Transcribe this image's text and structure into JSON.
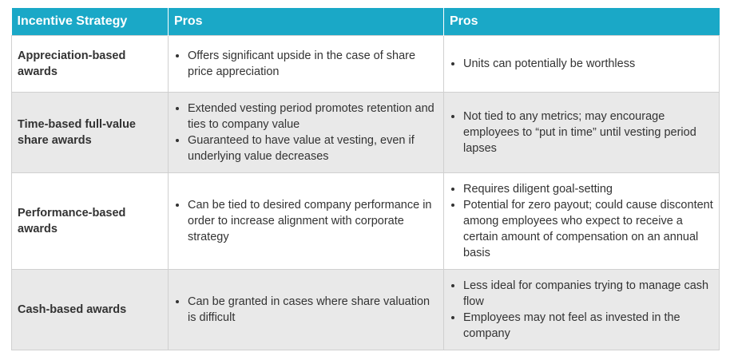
{
  "table": {
    "headers": [
      "Incentive Strategy",
      "Pros",
      "Pros"
    ],
    "rows": [
      {
        "strategy": "Appreciation-based awards",
        "col2": [
          "Offers significant upside in the case of share price appreciation"
        ],
        "col3": [
          "Units can potentially be worthless"
        ]
      },
      {
        "strategy": "Time-based full-value share awards",
        "col2": [
          "Extended vesting period promotes retention and ties to company value",
          "Guaranteed to have value at vesting, even if underlying value decreases"
        ],
        "col3": [
          "Not tied to any metrics; may encourage employees to “put in time” until vesting period lapses"
        ]
      },
      {
        "strategy": "Performance-based awards",
        "col2": [
          "Can be tied to desired company performance in order to increase alignment with corporate strategy"
        ],
        "col3": [
          "Requires diligent goal-setting",
          "Potential for zero payout; could cause discontent among employees who expect to receive a certain amount of compensation on an annual basis"
        ]
      },
      {
        "strategy": "Cash-based awards",
        "col2": [
          "Can be granted in cases where share valuation is difficult"
        ],
        "col3": [
          "Less ideal for companies trying to manage cash flow",
          "Employees may not feel as invested in the company"
        ]
      }
    ]
  },
  "colors": {
    "header_bg": "#1aa8c7",
    "header_text": "#ffffff",
    "shaded_row": "#e9e9e9",
    "border": "#d0d0d0"
  }
}
